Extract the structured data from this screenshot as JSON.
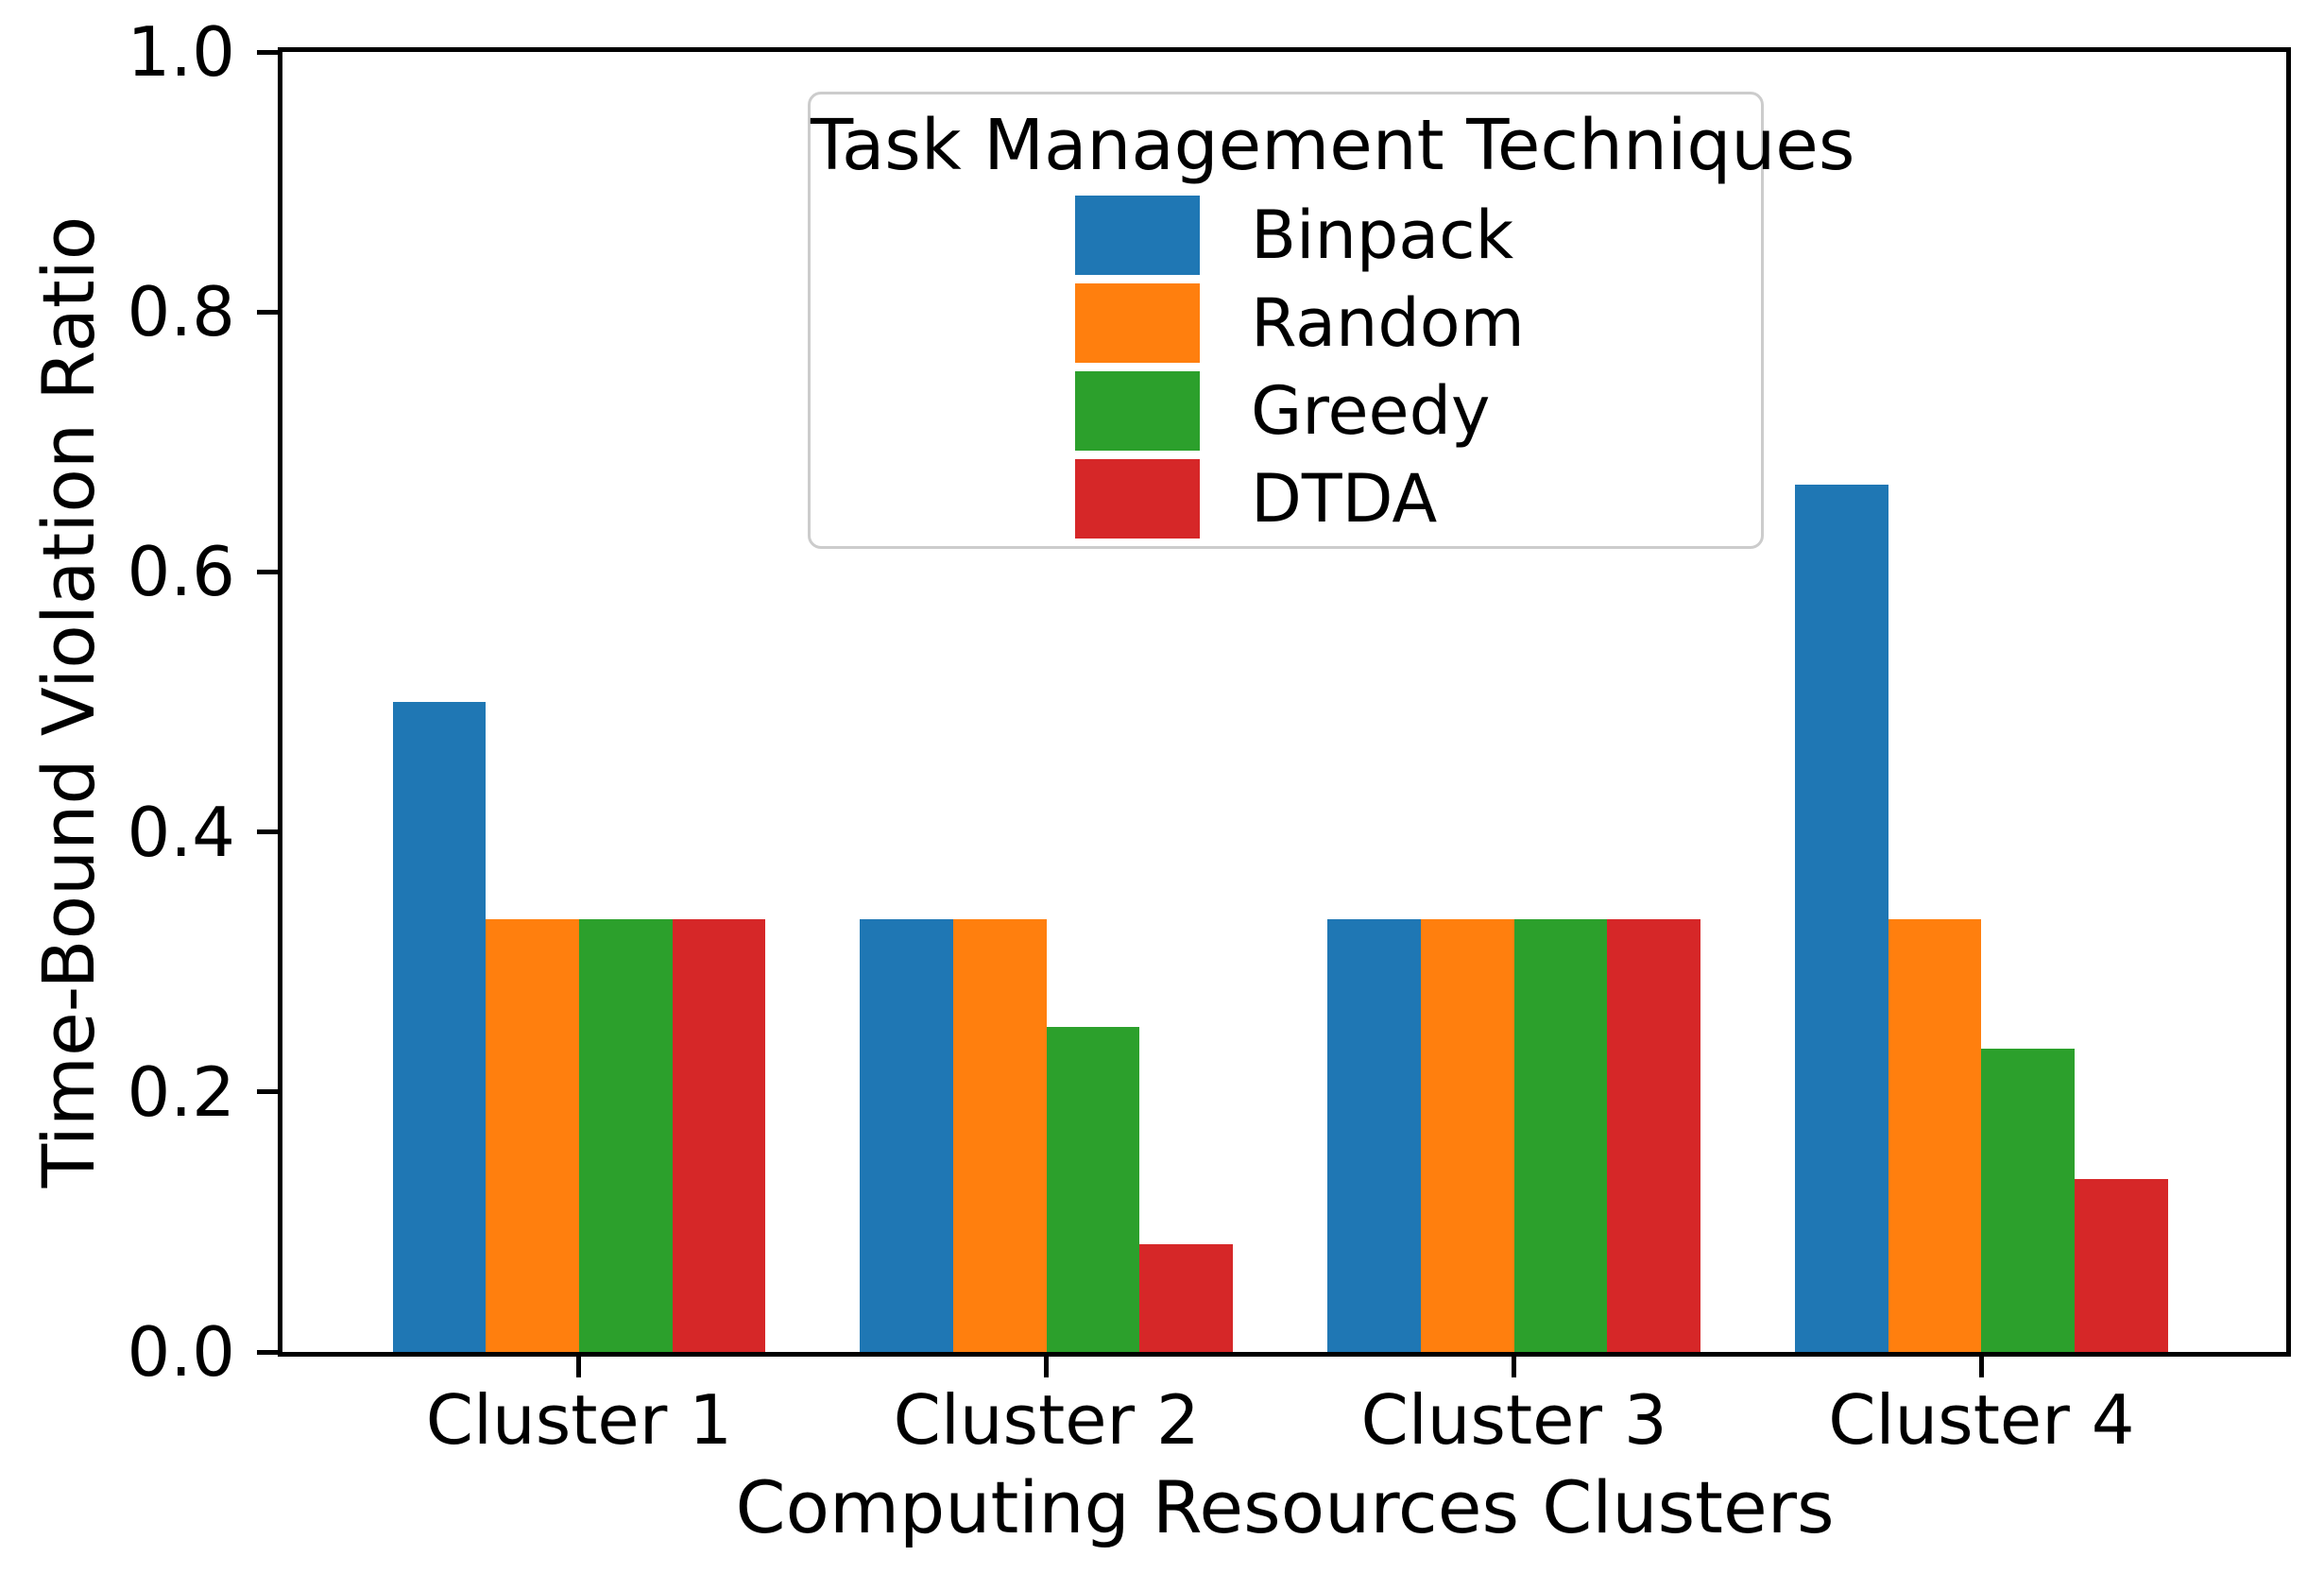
{
  "chart_data": {
    "type": "bar",
    "title": "",
    "xlabel": "Computing Resources Clusters",
    "ylabel": "Time-Bound Violation Ratio",
    "categories": [
      "Cluster 1",
      "Cluster 2",
      "Cluster 3",
      "Cluster 4"
    ],
    "series": [
      {
        "name": "Binpack",
        "color": "#1f77b4",
        "values": [
          0.5,
          0.333,
          0.333,
          0.667
        ]
      },
      {
        "name": "Random",
        "color": "#ff7f0e",
        "values": [
          0.333,
          0.333,
          0.333,
          0.333
        ]
      },
      {
        "name": "Greedy",
        "color": "#2ca02c",
        "values": [
          0.333,
          0.25,
          0.333,
          0.233
        ]
      },
      {
        "name": "DTDA",
        "color": "#d62728",
        "values": [
          0.333,
          0.083,
          0.333,
          0.133
        ]
      }
    ],
    "legend_title": "Task Management Techniques",
    "legend_position": "upper center inside",
    "ylim": [
      0.0,
      1.0
    ],
    "yticks": [
      0.0,
      0.2,
      0.4,
      0.6,
      0.8,
      1.0
    ],
    "ytick_labels": [
      "0.0",
      "0.2",
      "0.4",
      "0.6",
      "0.8",
      "1.0"
    ],
    "grid": false,
    "axis_color": "#000000"
  }
}
